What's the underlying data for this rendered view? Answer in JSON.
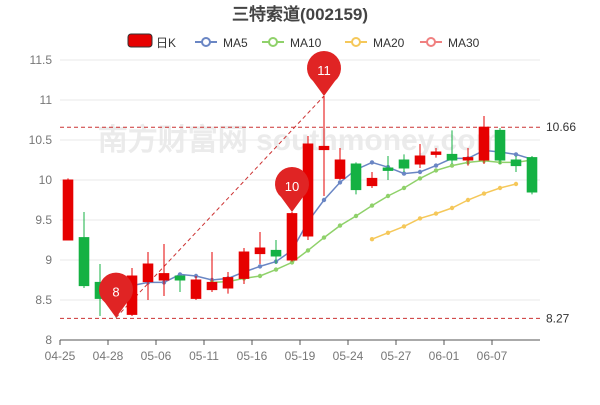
{
  "chart_data": {
    "type": "candlestick",
    "title": "三特索道(002159)",
    "legend": {
      "placement": "top-center",
      "items": [
        {
          "name": "日K",
          "color": "#e60000"
        },
        {
          "name": "MA5",
          "color": "#6a86c4"
        },
        {
          "name": "MA10",
          "color": "#8fd16a"
        },
        {
          "name": "MA20",
          "color": "#f5c85a"
        },
        {
          "name": "MA30",
          "color": "#f08080"
        }
      ]
    },
    "y_axis": {
      "min": 8,
      "max": 11.5,
      "ticks": [
        "8",
        "8.5",
        "9",
        "9.5",
        "10",
        "10.5",
        "11",
        "11.5"
      ],
      "grid": true
    },
    "x_axis": {
      "tick_labels": [
        {
          "index": 0,
          "label": "04-25"
        },
        {
          "index": 3,
          "label": "04-28"
        },
        {
          "index": 6,
          "label": "05-06"
        },
        {
          "index": 9,
          "label": "05-11"
        },
        {
          "index": 12,
          "label": "05-16"
        },
        {
          "index": 15,
          "label": "05-19"
        },
        {
          "index": 18,
          "label": "05-24"
        },
        {
          "index": 21,
          "label": "05-27"
        },
        {
          "index": 24,
          "label": "06-01"
        },
        {
          "index": 27,
          "label": "06-07"
        }
      ]
    },
    "colors": {
      "up": "#e60000",
      "down": "#14b143",
      "ma5": "#6a86c4",
      "ma10": "#8fd16a",
      "ma20": "#f5c85a",
      "axis_text": "#777777",
      "grid": "#e8e8e8"
    },
    "candles": [
      {
        "open": 9.25,
        "close": 10.0,
        "low": 9.25,
        "high": 10.02
      },
      {
        "open": 9.28,
        "close": 8.68,
        "low": 8.65,
        "high": 9.6
      },
      {
        "open": 8.72,
        "close": 8.52,
        "low": 8.3,
        "high": 8.95
      },
      {
        "open": 8.72,
        "close": 8.62,
        "low": 8.28,
        "high": 8.75
      },
      {
        "open": 8.32,
        "close": 8.8,
        "low": 8.3,
        "high": 8.9
      },
      {
        "open": 8.73,
        "close": 8.95,
        "low": 8.5,
        "high": 9.1
      },
      {
        "open": 8.75,
        "close": 8.83,
        "low": 8.55,
        "high": 9.2
      },
      {
        "open": 8.8,
        "close": 8.75,
        "low": 8.6,
        "high": 8.8
      },
      {
        "open": 8.52,
        "close": 8.75,
        "low": 8.5,
        "high": 8.8
      },
      {
        "open": 8.63,
        "close": 8.72,
        "low": 8.6,
        "high": 9.1
      },
      {
        "open": 8.65,
        "close": 8.78,
        "low": 8.58,
        "high": 8.85
      },
      {
        "open": 8.77,
        "close": 9.1,
        "low": 8.7,
        "high": 9.15
      },
      {
        "open": 9.08,
        "close": 9.15,
        "low": 8.95,
        "high": 9.35
      },
      {
        "open": 9.12,
        "close": 9.05,
        "low": 8.95,
        "high": 9.25
      },
      {
        "open": 9.0,
        "close": 9.58,
        "low": 8.98,
        "high": 9.6
      },
      {
        "open": 9.3,
        "close": 10.45,
        "low": 9.25,
        "high": 10.55
      },
      {
        "open": 10.38,
        "close": 10.42,
        "low": 9.8,
        "high": 11.05
      },
      {
        "open": 10.02,
        "close": 10.25,
        "low": 10.0,
        "high": 10.4
      },
      {
        "open": 10.2,
        "close": 9.88,
        "low": 9.82,
        "high": 10.22
      },
      {
        "open": 9.93,
        "close": 10.02,
        "low": 9.9,
        "high": 10.1
      },
      {
        "open": 10.15,
        "close": 10.12,
        "low": 10.0,
        "high": 10.3
      },
      {
        "open": 10.25,
        "close": 10.15,
        "low": 10.1,
        "high": 10.32
      },
      {
        "open": 10.2,
        "close": 10.3,
        "low": 10.15,
        "high": 10.45
      },
      {
        "open": 10.32,
        "close": 10.35,
        "low": 10.28,
        "high": 10.4
      },
      {
        "open": 10.32,
        "close": 10.25,
        "low": 10.2,
        "high": 10.62
      },
      {
        "open": 10.25,
        "close": 10.28,
        "low": 10.18,
        "high": 10.4
      },
      {
        "open": 10.25,
        "close": 10.66,
        "low": 10.2,
        "high": 10.8
      },
      {
        "open": 10.62,
        "close": 10.25,
        "low": 10.2,
        "high": 10.65
      },
      {
        "open": 10.25,
        "close": 10.18,
        "low": 10.1,
        "high": 10.3
      },
      {
        "open": 10.28,
        "close": 9.85,
        "low": 9.82,
        "high": 10.3
      }
    ],
    "ma5": [
      null,
      null,
      null,
      null,
      8.68,
      8.72,
      8.72,
      8.82,
      8.8,
      8.75,
      8.77,
      8.85,
      8.92,
      8.98,
      9.12,
      9.48,
      9.75,
      9.97,
      10.13,
      10.22,
      10.16,
      10.08,
      10.1,
      10.18,
      10.27,
      10.27,
      10.37,
      10.35,
      10.32,
      10.26
    ],
    "ma10": [
      null,
      null,
      null,
      null,
      null,
      null,
      null,
      null,
      null,
      8.72,
      8.73,
      8.77,
      8.8,
      8.88,
      8.97,
      9.12,
      9.28,
      9.43,
      9.55,
      9.68,
      9.8,
      9.9,
      10.02,
      10.12,
      10.18,
      10.22,
      10.24,
      10.22,
      10.22,
      10.25
    ],
    "ma20": [
      null,
      null,
      null,
      null,
      null,
      null,
      null,
      null,
      null,
      null,
      null,
      null,
      null,
      null,
      null,
      null,
      null,
      null,
      null,
      9.26,
      9.34,
      9.42,
      9.52,
      9.58,
      9.65,
      9.75,
      9.83,
      9.9,
      9.95,
      null
    ],
    "ma30": [],
    "annotations": {
      "high_marker": {
        "index": 16,
        "value": 11.05,
        "label": "11"
      },
      "low_marker": {
        "index": 3,
        "value": 8.28,
        "label": "8"
      },
      "mid_marker": {
        "index": 14,
        "value": 9.6,
        "label": "10"
      },
      "high_line": {
        "value": 10.66,
        "label": "10.66"
      },
      "low_line": {
        "value": 8.27,
        "label": "8.27"
      }
    },
    "watermark": "南方财富网 southmoney.com"
  }
}
